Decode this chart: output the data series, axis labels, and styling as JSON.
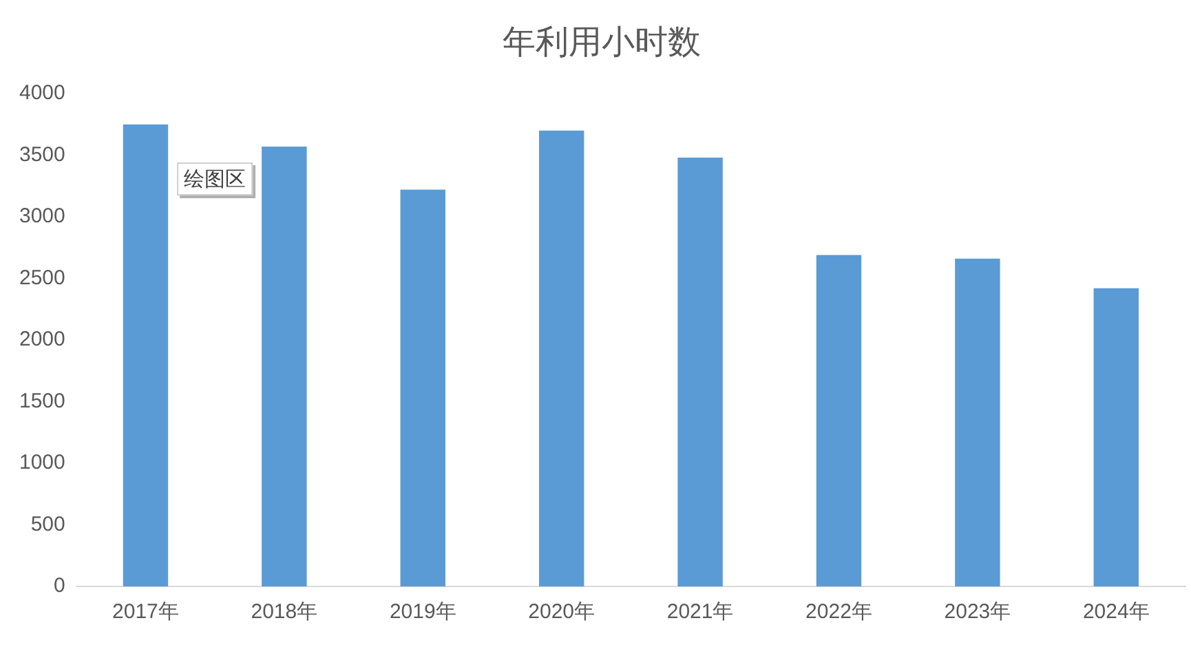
{
  "chart_data": {
    "type": "bar",
    "title": "年利用小时数",
    "categories": [
      "2017年",
      "2018年",
      "2019年",
      "2020年",
      "2021年",
      "2022年",
      "2023年",
      "2024年"
    ],
    "values": [
      3750,
      3570,
      3220,
      3700,
      3480,
      2690,
      2660,
      2420
    ],
    "color": "#5b9bd5",
    "ylim": [
      0,
      4000
    ],
    "yticks": [
      0,
      500,
      1000,
      1500,
      2000,
      2500,
      3000,
      3500,
      4000
    ],
    "annotations": [
      "绘图区"
    ]
  }
}
